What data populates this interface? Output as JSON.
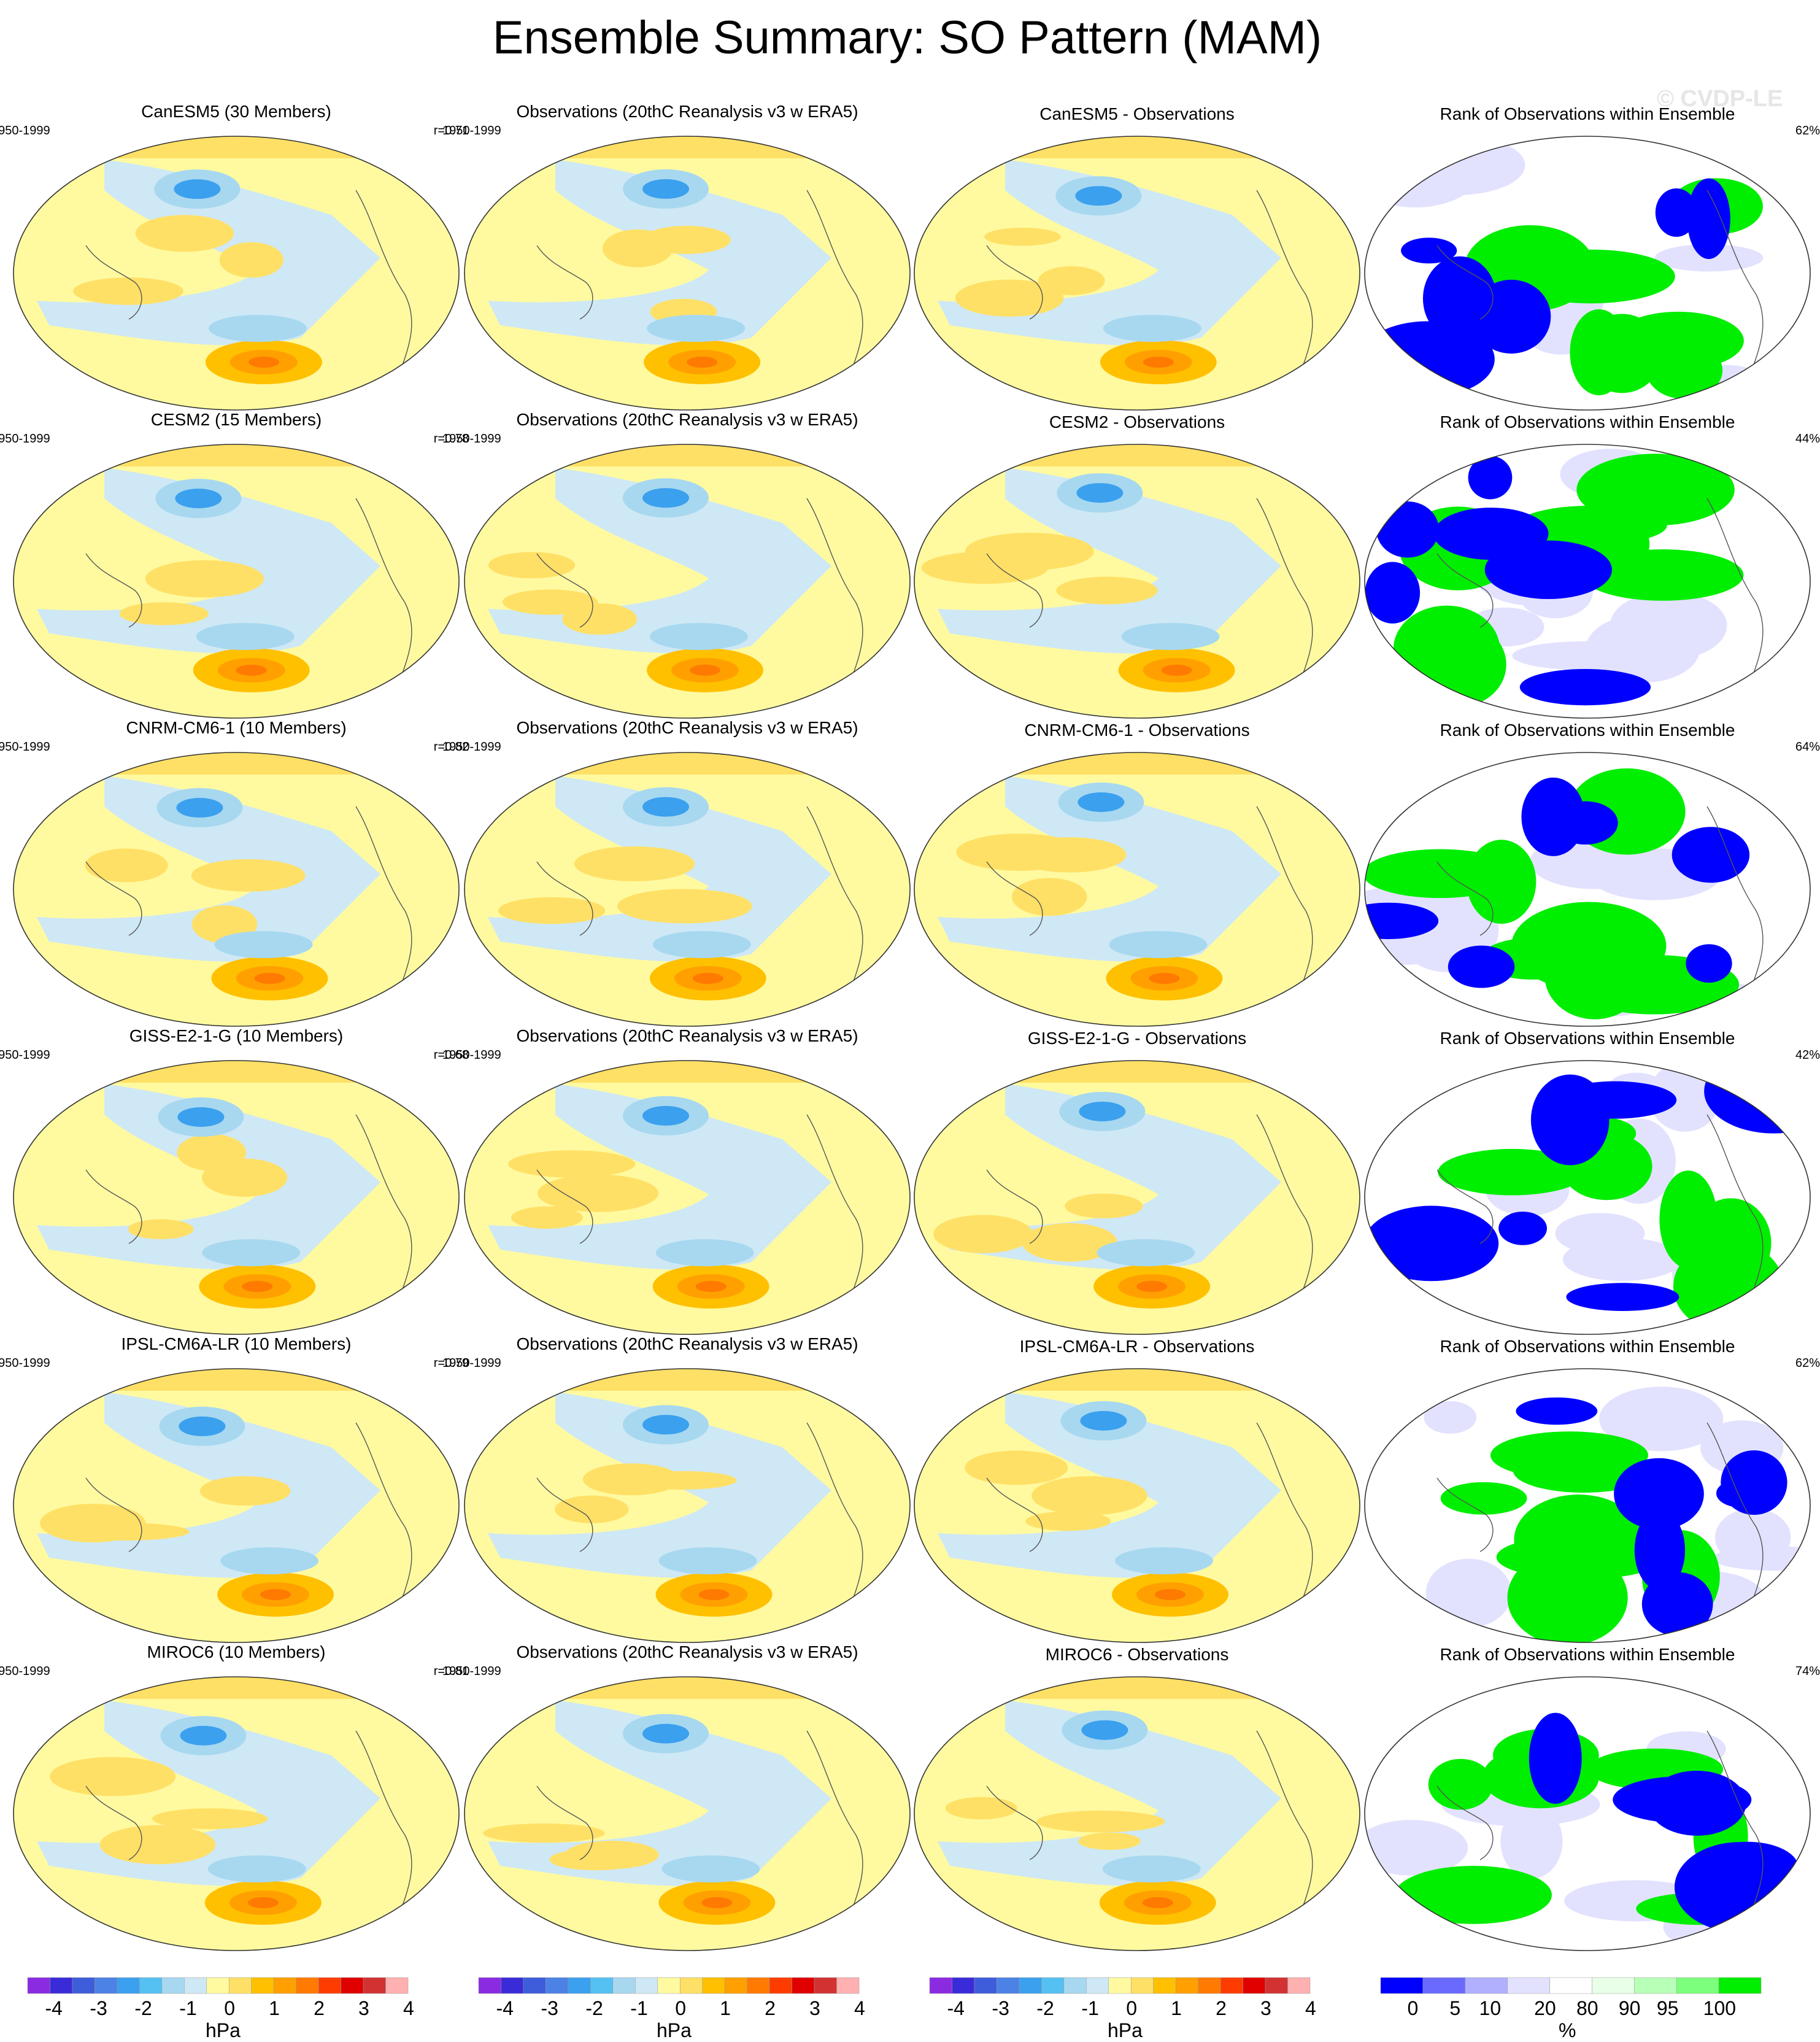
{
  "title": "Ensemble Summary: SO Pattern (MAM)",
  "watermark": "© CVDP-LE",
  "period": "1950-1999",
  "obs_title": "Observations (20thC Reanalysis v3 w ERA5)",
  "rank_title": "Rank of Observations within Ensemble",
  "rows": [
    {
      "model_title": "CanESM5 (30 Members)",
      "r": "r=0.71",
      "diff_title": "CanESM5 - Observations",
      "rank_pct": "62%"
    },
    {
      "model_title": "CESM2 (15 Members)",
      "r": "r=0.78",
      "diff_title": "CESM2 - Observations",
      "rank_pct": "44%"
    },
    {
      "model_title": "CNRM-CM6-1 (10 Members)",
      "r": "r=0.82",
      "diff_title": "CNRM-CM6-1 - Observations",
      "rank_pct": "64%"
    },
    {
      "model_title": "GISS-E2-1-G (10 Members)",
      "r": "r=0.68",
      "diff_title": "GISS-E2-1-G - Observations",
      "rank_pct": "42%"
    },
    {
      "model_title": "IPSL-CM6A-LR (10 Members)",
      "r": "r=0.79",
      "diff_title": "IPSL-CM6A-LR - Observations",
      "rank_pct": "62%"
    },
    {
      "model_title": "MIROC6 (10 Members)",
      "r": "r=0.81",
      "diff_title": "MIROC6 - Observations",
      "rank_pct": "74%"
    }
  ],
  "colorbars": {
    "hpa": {
      "colors": [
        "#8a2be2",
        "#3a2bd9",
        "#3d5ddb",
        "#4c82e6",
        "#3ba0ee",
        "#55c0f2",
        "#a7d8f0",
        "#cfe8f5",
        "#fffaa0",
        "#ffe066",
        "#ffc000",
        "#ffa000",
        "#ff7a00",
        "#ff3c00",
        "#e00000",
        "#d23232",
        "#ffb0b0"
      ],
      "ticks": [
        "-4",
        "-3",
        "-2",
        "-1",
        "0",
        "1",
        "2",
        "3",
        "4"
      ],
      "unit": "hPa"
    },
    "pct": {
      "colors": [
        "#0000ff",
        "#6a6aff",
        "#b0b0ff",
        "#e2e2ff",
        "#ffffff",
        "#e8ffe8",
        "#b8ffb8",
        "#7cff7c",
        "#00ee00"
      ],
      "ticks": [
        "0",
        "5",
        "10",
        "20",
        "80",
        "90",
        "95",
        "100"
      ],
      "unit": "%"
    }
  },
  "chart_data": {
    "type": "heatmap",
    "description_fields": [
      "model",
      "observations",
      "model minus observations",
      "rank of observations within ensemble"
    ],
    "panels_per_row": 4,
    "rows": 6,
    "field_units": "hPa",
    "field_range": [
      -4,
      4
    ],
    "rank_units": "%",
    "rank_levels": [
      0,
      5,
      10,
      20,
      80,
      90,
      95,
      100
    ]
  }
}
